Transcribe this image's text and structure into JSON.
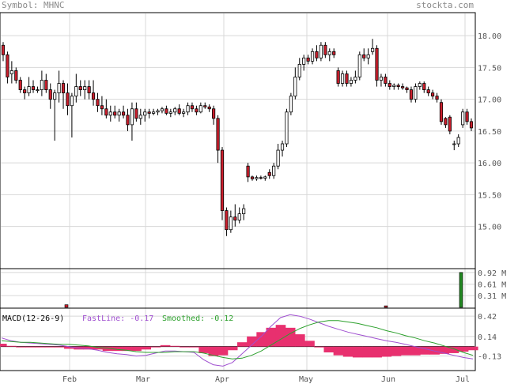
{
  "header": {
    "symbol_label": "Symbol: MHNC",
    "site_label": "stockta.com"
  },
  "colors": {
    "up": "#ffffff",
    "down": "#cc1f2d",
    "macd_hist": "#e8306f",
    "fastline": "#a050d0",
    "smoothed": "#2ca02c",
    "volume": "#228822",
    "grid": "#d8d8d8"
  },
  "chart_data": [
    {
      "type": "candlestick",
      "title": "",
      "x": [
        "Feb",
        "Mar",
        "Apr",
        "May",
        "Jun",
        "Jul"
      ],
      "ylim": [
        14.35,
        18.35
      ],
      "y_ticks": [
        "18.00",
        "17.50",
        "17.00",
        "16.50",
        "16.00",
        "15.50",
        "15.00"
      ],
      "candles": [
        [
          17.85,
          17.9,
          17.6,
          17.7
        ],
        [
          17.7,
          17.75,
          17.25,
          17.35
        ],
        [
          17.4,
          17.6,
          17.25,
          17.45
        ],
        [
          17.45,
          17.5,
          17.25,
          17.3
        ],
        [
          17.3,
          17.35,
          17.1,
          17.15
        ],
        [
          17.15,
          17.2,
          17.0,
          17.1
        ],
        [
          17.1,
          17.35,
          17.05,
          17.2
        ],
        [
          17.2,
          17.3,
          17.1,
          17.15
        ],
        [
          17.15,
          17.2,
          17.1,
          17.15
        ],
        [
          17.15,
          17.45,
          17.05,
          17.3
        ],
        [
          17.3,
          17.4,
          17.1,
          17.15
        ],
        [
          17.15,
          17.25,
          16.85,
          17.0
        ],
        [
          17.0,
          17.15,
          16.35,
          17.1
        ],
        [
          17.1,
          17.45,
          16.95,
          17.25
        ],
        [
          17.25,
          17.3,
          16.85,
          17.1
        ],
        [
          17.1,
          17.25,
          16.75,
          16.9
        ],
        [
          16.9,
          17.1,
          16.4,
          17.05
        ],
        [
          17.05,
          17.4,
          16.95,
          17.2
        ],
        [
          17.2,
          17.3,
          17.05,
          17.15
        ],
        [
          17.15,
          17.3,
          17.0,
          17.2
        ],
        [
          17.2,
          17.3,
          17.0,
          17.1
        ],
        [
          17.1,
          17.3,
          16.9,
          17.0
        ],
        [
          17.0,
          17.1,
          16.8,
          16.9
        ],
        [
          16.9,
          17.05,
          16.75,
          16.85
        ],
        [
          16.85,
          17.0,
          16.7,
          16.75
        ],
        [
          16.75,
          16.9,
          16.65,
          16.8
        ],
        [
          16.8,
          16.9,
          16.7,
          16.75
        ],
        [
          16.75,
          16.85,
          16.65,
          16.8
        ],
        [
          16.8,
          16.9,
          16.7,
          16.75
        ],
        [
          16.75,
          16.85,
          16.5,
          16.6
        ],
        [
          16.6,
          16.95,
          16.35,
          16.85
        ],
        [
          16.85,
          16.95,
          16.65,
          16.7
        ],
        [
          16.7,
          16.85,
          16.6,
          16.75
        ],
        [
          16.75,
          16.85,
          16.65,
          16.8
        ],
        [
          16.8,
          16.85,
          16.7,
          16.78
        ],
        [
          16.78,
          16.85,
          16.75,
          16.8
        ],
        [
          16.8,
          16.85,
          16.75,
          16.82
        ],
        [
          16.82,
          16.88,
          16.78,
          16.85
        ],
        [
          16.85,
          16.9,
          16.75,
          16.78
        ],
        [
          16.78,
          16.85,
          16.72,
          16.8
        ],
        [
          16.8,
          16.88,
          16.75,
          16.85
        ],
        [
          16.85,
          16.92,
          16.75,
          16.78
        ],
        [
          16.78,
          16.85,
          16.72,
          16.8
        ],
        [
          16.8,
          16.95,
          16.75,
          16.9
        ],
        [
          16.9,
          16.95,
          16.8,
          16.85
        ],
        [
          16.85,
          16.9,
          16.75,
          16.8
        ],
        [
          16.8,
          16.95,
          16.78,
          16.9
        ],
        [
          16.9,
          16.95,
          16.85,
          16.88
        ],
        [
          16.88,
          16.92,
          16.8,
          16.85
        ],
        [
          16.85,
          16.9,
          16.6,
          16.7
        ],
        [
          16.7,
          16.75,
          16.0,
          16.2
        ],
        [
          16.2,
          16.25,
          15.1,
          15.25
        ],
        [
          15.25,
          15.3,
          14.85,
          14.95
        ],
        [
          14.95,
          15.25,
          14.9,
          15.15
        ],
        [
          15.15,
          15.35,
          15.0,
          15.1
        ],
        [
          15.1,
          15.3,
          15.05,
          15.2
        ],
        [
          15.2,
          15.35,
          15.1,
          15.28
        ],
        [
          15.95,
          16.0,
          15.7,
          15.78
        ],
        [
          15.78,
          15.8,
          15.72,
          15.75
        ],
        [
          15.75,
          15.8,
          15.72,
          15.77
        ],
        [
          15.77,
          15.8,
          15.74,
          15.76
        ],
        [
          15.76,
          15.8,
          15.72,
          15.78
        ],
        [
          15.85,
          15.9,
          15.75,
          15.8
        ],
        [
          15.8,
          16.0,
          15.75,
          15.95
        ],
        [
          15.95,
          16.3,
          15.9,
          16.2
        ],
        [
          16.2,
          16.35,
          16.1,
          16.3
        ],
        [
          16.3,
          16.85,
          16.25,
          16.8
        ],
        [
          16.8,
          17.1,
          16.75,
          17.05
        ],
        [
          17.05,
          17.5,
          17.0,
          17.35
        ],
        [
          17.35,
          17.65,
          17.3,
          17.55
        ],
        [
          17.55,
          17.7,
          17.45,
          17.65
        ],
        [
          17.65,
          17.7,
          17.55,
          17.6
        ],
        [
          17.6,
          17.8,
          17.55,
          17.75
        ],
        [
          17.75,
          17.85,
          17.6,
          17.65
        ],
        [
          17.65,
          17.9,
          17.6,
          17.85
        ],
        [
          17.85,
          17.9,
          17.65,
          17.7
        ],
        [
          17.7,
          17.8,
          17.6,
          17.75
        ],
        [
          17.75,
          17.8,
          17.65,
          17.7
        ],
        [
          17.45,
          17.5,
          17.2,
          17.25
        ],
        [
          17.25,
          17.45,
          17.2,
          17.4
        ],
        [
          17.4,
          17.45,
          17.2,
          17.25
        ],
        [
          17.25,
          17.35,
          17.2,
          17.3
        ],
        [
          17.3,
          17.45,
          17.25,
          17.35
        ],
        [
          17.35,
          17.75,
          17.3,
          17.7
        ],
        [
          17.7,
          17.8,
          17.6,
          17.65
        ],
        [
          17.65,
          17.8,
          17.55,
          17.7
        ],
        [
          17.75,
          17.95,
          17.7,
          17.8
        ],
        [
          17.8,
          17.85,
          17.2,
          17.3
        ],
        [
          17.3,
          17.4,
          17.2,
          17.35
        ],
        [
          17.35,
          17.4,
          17.2,
          17.25
        ],
        [
          17.25,
          17.3,
          17.15,
          17.2
        ],
        [
          17.2,
          17.25,
          17.15,
          17.22
        ],
        [
          17.22,
          17.25,
          17.15,
          17.2
        ],
        [
          17.2,
          17.25,
          17.15,
          17.18
        ],
        [
          17.18,
          17.2,
          17.1,
          17.15
        ],
        [
          17.15,
          17.2,
          16.95,
          17.0
        ],
        [
          17.0,
          17.25,
          16.95,
          17.2
        ],
        [
          17.2,
          17.28,
          17.15,
          17.25
        ],
        [
          17.25,
          17.28,
          17.1,
          17.15
        ],
        [
          17.15,
          17.2,
          17.05,
          17.1
        ],
        [
          17.1,
          17.15,
          17.0,
          17.05
        ],
        [
          17.05,
          17.1,
          16.95,
          17.0
        ],
        [
          16.95,
          17.0,
          16.6,
          16.65
        ],
        [
          16.7,
          16.72,
          16.55,
          16.6
        ],
        [
          16.72,
          16.75,
          16.45,
          16.5
        ],
        [
          16.3,
          16.35,
          16.2,
          16.3
        ],
        [
          16.3,
          16.45,
          16.25,
          16.4
        ],
        [
          16.6,
          16.85,
          16.55,
          16.8
        ],
        [
          16.8,
          16.85,
          16.6,
          16.65
        ],
        [
          16.65,
          16.7,
          16.5,
          16.55
        ]
      ]
    },
    {
      "type": "bar",
      "title": "",
      "y_ticks": [
        "0.92 M",
        "0.61 M",
        "0.31 M"
      ],
      "ylim": [
        0,
        1.0
      ],
      "values": [
        0.07,
        0.04,
        0.92
      ]
    },
    {
      "type": "line",
      "title": "MACD(12-26-9)",
      "fastline_label": "FastLine: -0.17",
      "smoothed_label": "Smoothed: -0.12",
      "ylim": [
        -0.32,
        0.52
      ],
      "y_ticks": [
        "0.42",
        "0.14",
        "-0.13"
      ],
      "series": [
        {
          "name": "FastLine",
          "values": [
            0.12,
            0.08,
            0.06,
            0.05,
            0.04,
            0.03,
            0.02,
            0.0,
            -0.02,
            -0.03,
            -0.05,
            -0.08,
            -0.1,
            -0.11,
            -0.13,
            -0.12,
            -0.09,
            -0.06,
            -0.06,
            -0.07,
            -0.08,
            -0.18,
            -0.25,
            -0.27,
            -0.22,
            -0.1,
            0.02,
            0.14,
            0.28,
            0.4,
            0.44,
            0.42,
            0.38,
            0.33,
            0.28,
            0.24,
            0.2,
            0.17,
            0.14,
            0.11,
            0.08,
            0.06,
            0.03,
            0.0,
            -0.03,
            -0.06,
            -0.09,
            -0.12,
            -0.15,
            -0.17
          ]
        },
        {
          "name": "Smoothed",
          "values": [
            0.08,
            0.07,
            0.06,
            0.06,
            0.05,
            0.04,
            0.03,
            0.03,
            0.02,
            0.01,
            -0.01,
            -0.02,
            -0.04,
            -0.05,
            -0.07,
            -0.08,
            -0.08,
            -0.08,
            -0.07,
            -0.07,
            -0.07,
            -0.09,
            -0.12,
            -0.15,
            -0.17,
            -0.16,
            -0.12,
            -0.06,
            0.02,
            0.1,
            0.18,
            0.25,
            0.3,
            0.34,
            0.36,
            0.36,
            0.34,
            0.32,
            0.29,
            0.26,
            0.22,
            0.19,
            0.15,
            0.12,
            0.08,
            0.05,
            0.01,
            -0.03,
            -0.08,
            -0.12
          ]
        },
        {
          "name": "Histogram",
          "values": [
            0.04,
            0.01,
            0.0,
            -0.01,
            -0.01,
            -0.01,
            -0.01,
            -0.03,
            -0.04,
            -0.04,
            -0.04,
            -0.06,
            -0.06,
            -0.06,
            -0.06,
            -0.04,
            -0.01,
            0.02,
            0.01,
            0.0,
            -0.01,
            -0.09,
            -0.13,
            -0.12,
            -0.05,
            0.06,
            0.14,
            0.2,
            0.26,
            0.3,
            0.26,
            0.17,
            0.08,
            -0.01,
            -0.08,
            -0.12,
            -0.14,
            -0.15,
            -0.15,
            -0.15,
            -0.14,
            -0.13,
            -0.12,
            -0.12,
            -0.11,
            -0.11,
            -0.1,
            -0.09,
            -0.07,
            -0.05
          ]
        }
      ]
    }
  ]
}
